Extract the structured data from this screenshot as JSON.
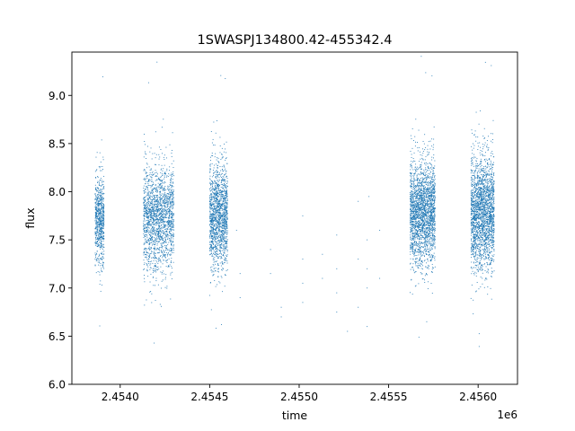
{
  "chart_data": {
    "type": "scatter",
    "title": "1SWASPJ134800.42-455342.4",
    "xlabel": "time",
    "ylabel": "flux",
    "x_offset_label": "1e6",
    "xlim": [
      2.45373,
      2.45622
    ],
    "ylim": [
      6.0,
      9.45
    ],
    "x_ticks": [
      2.454,
      2.4545,
      2.455,
      2.4555,
      2.456
    ],
    "x_tick_labels": [
      "2.4540",
      "2.4545",
      "2.4550",
      "2.4555",
      "2.4560"
    ],
    "y_ticks": [
      6.0,
      6.5,
      7.0,
      7.5,
      8.0,
      8.5,
      9.0
    ],
    "y_tick_labels": [
      "6.0",
      "6.5",
      "7.0",
      "7.5",
      "8.0",
      "8.5",
      "9.0"
    ],
    "grid": false,
    "marker_color": "#1f77b4",
    "series": [
      {
        "clusters": [
          {
            "x_range": [
              2.45386,
              2.45391
            ],
            "center": 7.7,
            "spread": 0.22,
            "count": 700
          },
          {
            "x_range": [
              2.45413,
              2.4543
            ],
            "center": 7.72,
            "spread": 0.27,
            "count": 1800
          },
          {
            "x_range": [
              2.4545,
              2.4546
            ],
            "center": 7.75,
            "spread": 0.27,
            "count": 1500
          },
          {
            "x_range": [
              2.45562,
              2.45576
            ],
            "center": 7.78,
            "spread": 0.27,
            "count": 2200
          },
          {
            "x_range": [
              2.45596,
              2.45609
            ],
            "center": 7.78,
            "spread": 0.29,
            "count": 2200
          }
        ],
        "sparse_points": [
          {
            "x": 2.45465,
            "y": 7.6
          },
          {
            "x": 2.45467,
            "y": 7.15
          },
          {
            "x": 2.45467,
            "y": 6.9
          },
          {
            "x": 2.45484,
            "y": 7.15
          },
          {
            "x": 2.45484,
            "y": 7.4
          },
          {
            "x": 2.4549,
            "y": 6.7
          },
          {
            "x": 2.4549,
            "y": 6.8
          },
          {
            "x": 2.45502,
            "y": 7.75
          },
          {
            "x": 2.45502,
            "y": 7.3
          },
          {
            "x": 2.45502,
            "y": 7.05
          },
          {
            "x": 2.45502,
            "y": 6.85
          },
          {
            "x": 2.45513,
            "y": 7.35
          },
          {
            "x": 2.45513,
            "y": 7.1
          },
          {
            "x": 2.45521,
            "y": 7.55
          },
          {
            "x": 2.45521,
            "y": 7.2
          },
          {
            "x": 2.45521,
            "y": 6.95
          },
          {
            "x": 2.45521,
            "y": 6.75
          },
          {
            "x": 2.45527,
            "y": 6.55
          },
          {
            "x": 2.45533,
            "y": 7.9
          },
          {
            "x": 2.45533,
            "y": 7.3
          },
          {
            "x": 2.45533,
            "y": 6.8
          },
          {
            "x": 2.45538,
            "y": 7.5
          },
          {
            "x": 2.45538,
            "y": 7.2
          },
          {
            "x": 2.45538,
            "y": 7.0
          },
          {
            "x": 2.45538,
            "y": 6.6
          },
          {
            "x": 2.45539,
            "y": 7.95
          },
          {
            "x": 2.45545,
            "y": 7.6
          },
          {
            "x": 2.45545,
            "y": 7.1
          }
        ]
      }
    ]
  }
}
